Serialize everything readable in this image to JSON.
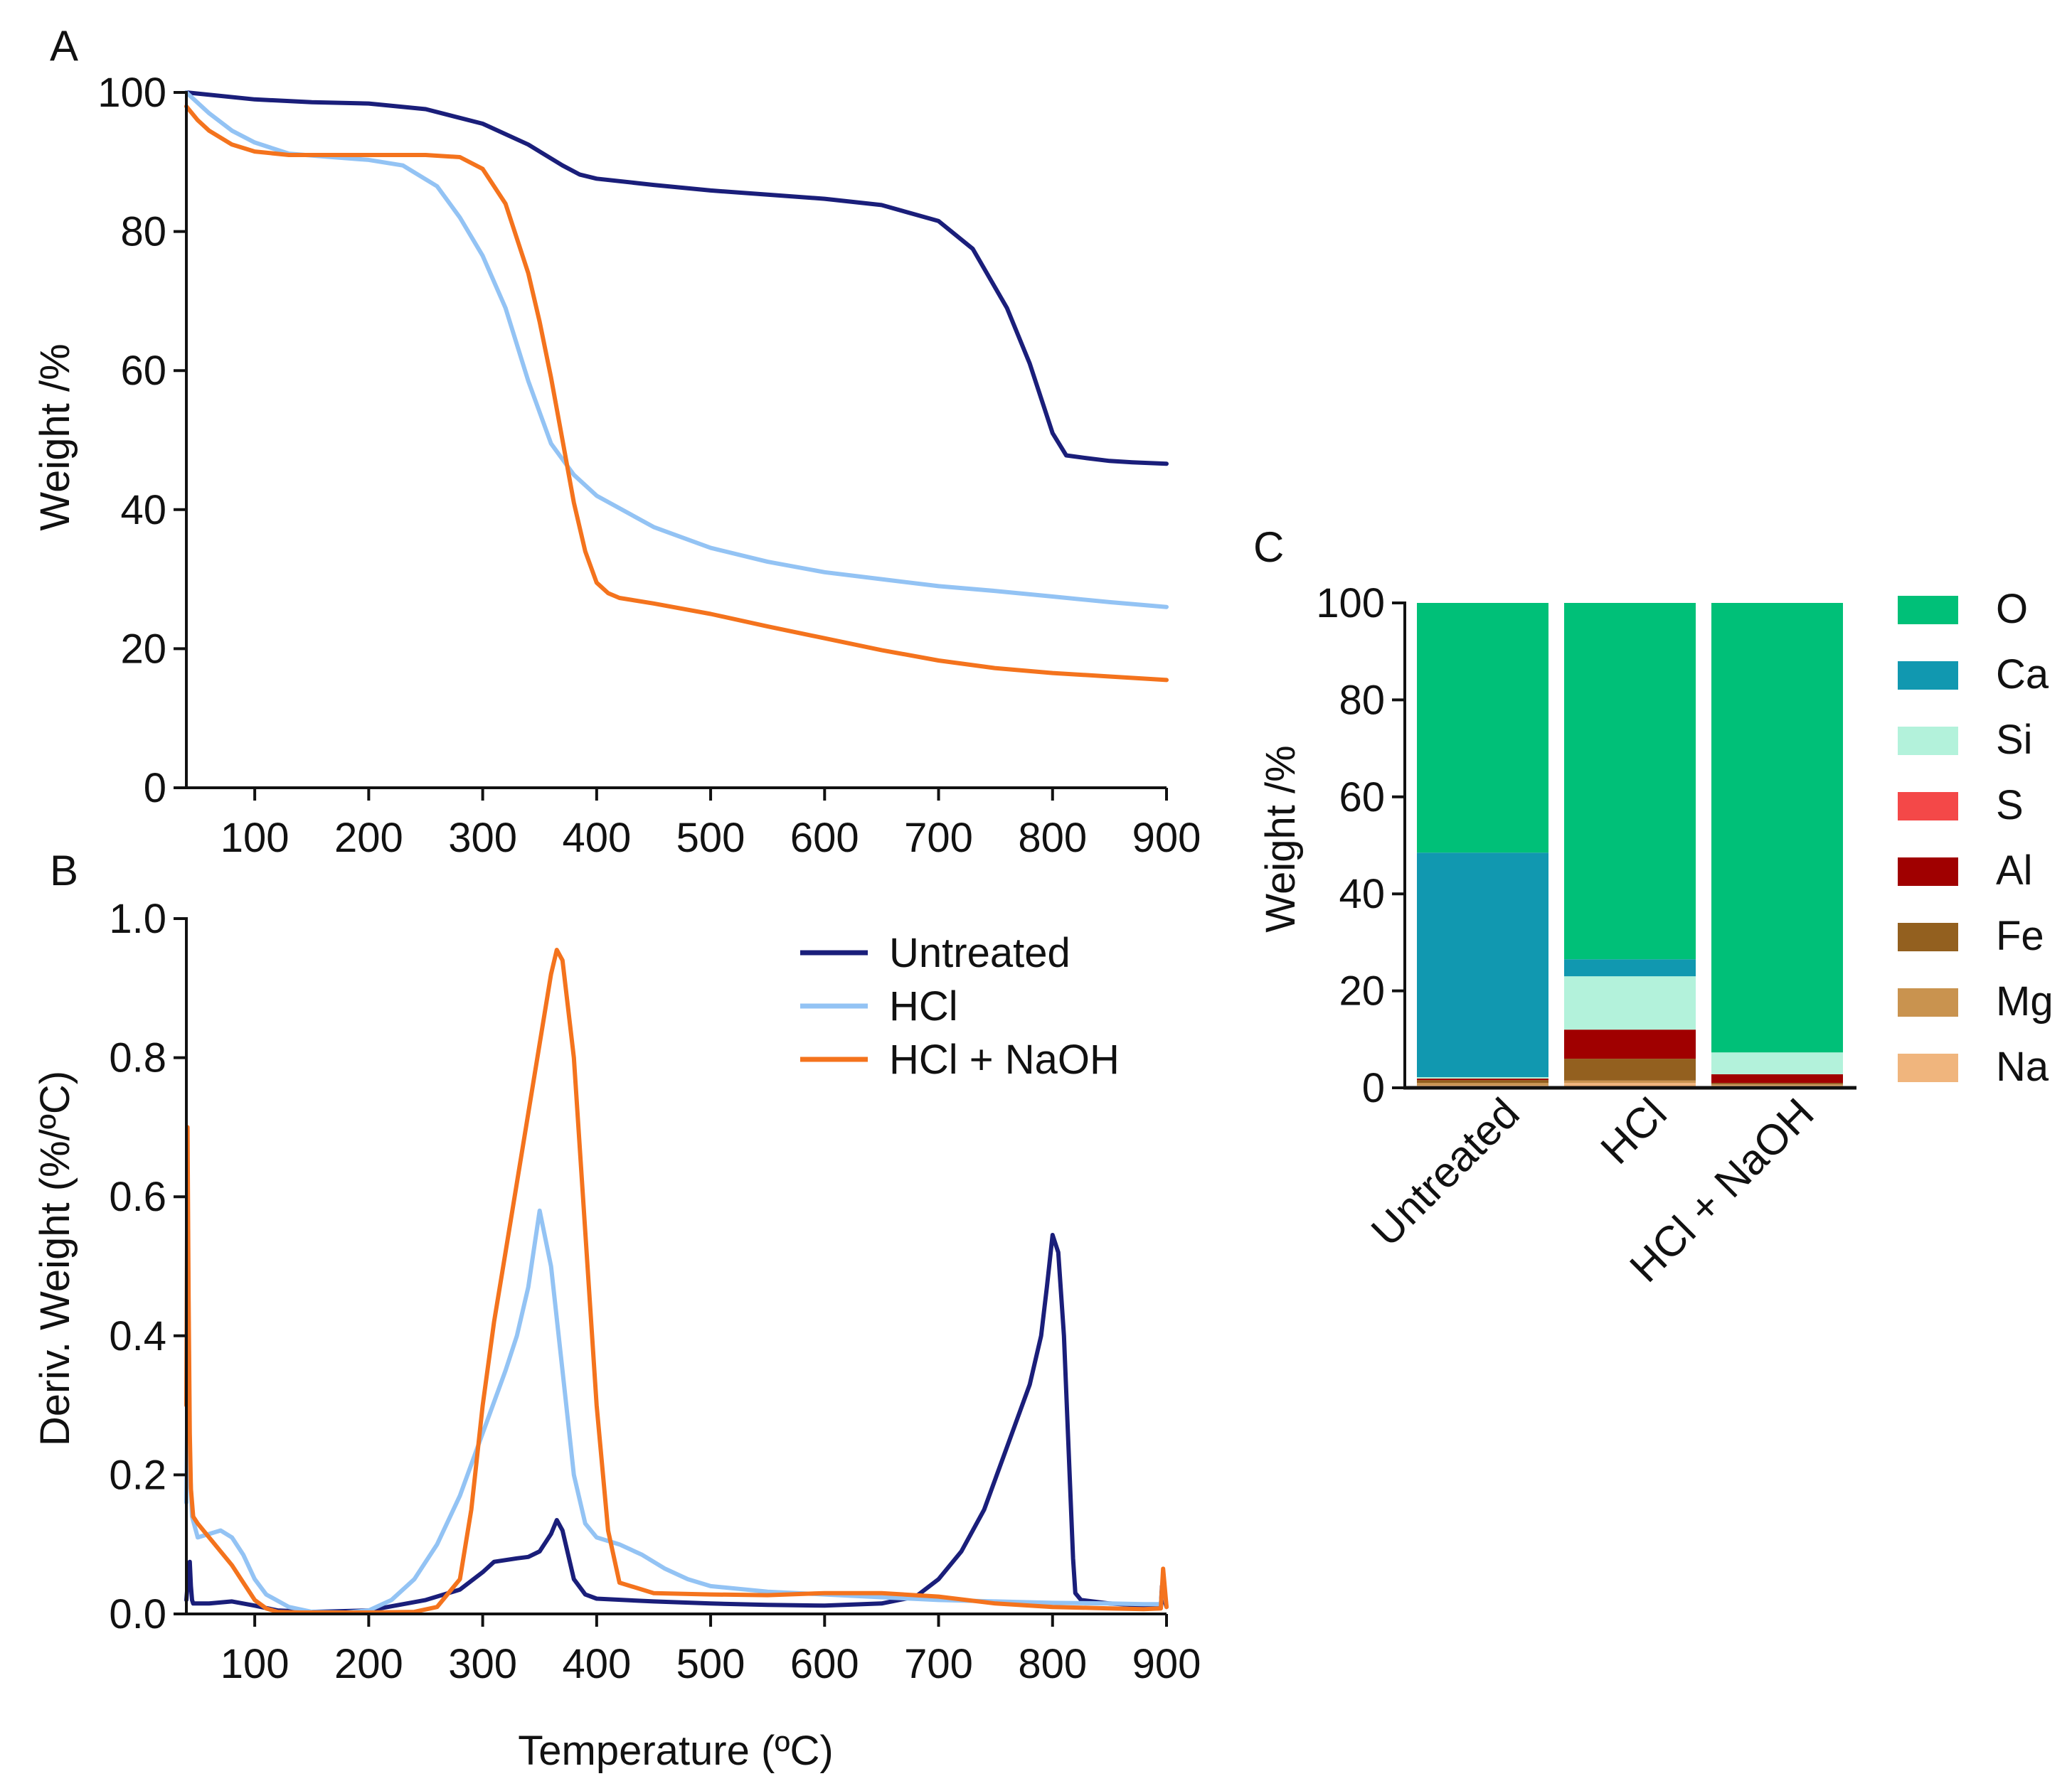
{
  "figure": {
    "panels": [
      "A",
      "B",
      "C"
    ],
    "shared_xlabel": "Temperature (ºC)"
  },
  "chart_data": [
    {
      "id": "A",
      "type": "line",
      "title": "",
      "xlabel": "",
      "ylabel": "Weight /%",
      "xlim": [
        40,
        900
      ],
      "ylim": [
        0,
        100
      ],
      "xticks": [
        100,
        200,
        300,
        400,
        500,
        600,
        700,
        800,
        900
      ],
      "yticks": [
        0,
        20,
        40,
        60,
        80,
        100
      ],
      "series": [
        {
          "name": "Untreated",
          "color": "#1a1e7a",
          "x": [
            40,
            100,
            150,
            200,
            250,
            300,
            340,
            370,
            385,
            400,
            450,
            500,
            550,
            600,
            650,
            700,
            730,
            760,
            780,
            800,
            812,
            830,
            850,
            870,
            900
          ],
          "y": [
            100,
            99,
            98.6,
            98.4,
            97.6,
            95.5,
            92.5,
            89.5,
            88.2,
            87.6,
            86.7,
            85.9,
            85.3,
            84.7,
            83.8,
            81.5,
            77.5,
            69,
            61,
            51,
            47.8,
            47.4,
            47,
            46.8,
            46.6
          ]
        },
        {
          "name": "HCl",
          "color": "#93c3f4",
          "x": [
            40,
            60,
            80,
            100,
            130,
            160,
            200,
            230,
            260,
            280,
            300,
            320,
            340,
            360,
            380,
            400,
            450,
            500,
            550,
            600,
            650,
            700,
            750,
            800,
            850,
            900
          ],
          "y": [
            100,
            97,
            94.5,
            92.8,
            91.2,
            90.8,
            90.3,
            89.5,
            86.5,
            82,
            76.5,
            69,
            58.5,
            49.5,
            45,
            42,
            37.5,
            34.5,
            32.5,
            31,
            30,
            29,
            28.3,
            27.5,
            26.7,
            26
          ]
        },
        {
          "name": "HCl + NaOH",
          "color": "#f4731d",
          "x": [
            40,
            50,
            60,
            80,
            100,
            130,
            160,
            200,
            250,
            280,
            300,
            320,
            340,
            350,
            360,
            370,
            380,
            390,
            400,
            410,
            420,
            450,
            500,
            550,
            600,
            650,
            700,
            750,
            800,
            850,
            900
          ],
          "y": [
            98,
            96,
            94.5,
            92.5,
            91.5,
            91,
            91,
            91,
            91,
            90.7,
            89,
            84,
            74,
            67,
            59,
            50,
            41,
            34,
            29.5,
            28,
            27.3,
            26.5,
            25,
            23.2,
            21.5,
            19.8,
            18.3,
            17.2,
            16.5,
            16,
            15.5
          ]
        }
      ]
    },
    {
      "id": "B",
      "type": "line",
      "title": "",
      "xlabel": "Temperature (ºC)",
      "ylabel": "Deriv. Weight (%/ºC)",
      "xlim": [
        40,
        900
      ],
      "ylim": [
        0,
        1.0
      ],
      "xticks": [
        100,
        200,
        300,
        400,
        500,
        600,
        700,
        800,
        900
      ],
      "yticks": [
        0.0,
        0.2,
        0.4,
        0.6,
        0.8,
        1.0
      ],
      "legend": [
        "Untreated",
        "HCl",
        "HCl + NaOH"
      ],
      "legend_position": "top-right",
      "series": [
        {
          "name": "Untreated",
          "color": "#1a1e7a",
          "x": [
            40,
            42,
            43,
            44,
            45,
            46,
            50,
            60,
            80,
            100,
            120,
            150,
            200,
            250,
            280,
            300,
            310,
            330,
            340,
            350,
            360,
            365,
            370,
            380,
            390,
            400,
            450,
            500,
            550,
            600,
            650,
            680,
            700,
            720,
            740,
            760,
            780,
            790,
            795,
            800,
            805,
            810,
            815,
            818,
            820,
            825,
            850,
            880,
            895,
            896,
            898,
            900
          ],
          "y": [
            0.02,
            0.06,
            0.075,
            0.04,
            0.02,
            0.015,
            0.015,
            0.015,
            0.018,
            0.012,
            0.005,
            0.003,
            0.005,
            0.02,
            0.035,
            0.06,
            0.075,
            0.08,
            0.082,
            0.09,
            0.115,
            0.135,
            0.12,
            0.05,
            0.028,
            0.022,
            0.018,
            0.015,
            0.013,
            0.012,
            0.015,
            0.025,
            0.05,
            0.09,
            0.15,
            0.24,
            0.33,
            0.4,
            0.47,
            0.545,
            0.52,
            0.4,
            0.2,
            0.08,
            0.03,
            0.02,
            0.015,
            0.012,
            0.01,
            0.04,
            0.02,
            0.01
          ]
        },
        {
          "name": "HCl",
          "color": "#93c3f4",
          "x": [
            40,
            41,
            42,
            43,
            45,
            50,
            60,
            70,
            80,
            90,
            100,
            110,
            130,
            150,
            180,
            200,
            220,
            240,
            260,
            280,
            300,
            320,
            330,
            340,
            350,
            360,
            370,
            380,
            390,
            400,
            420,
            440,
            460,
            480,
            500,
            550,
            600,
            650,
            700,
            750,
            800,
            850,
            880,
            895,
            897,
            900
          ],
          "y": [
            0.16,
            0.32,
            0.42,
            0.22,
            0.14,
            0.11,
            0.115,
            0.12,
            0.11,
            0.085,
            0.05,
            0.028,
            0.01,
            0.003,
            0.002,
            0.005,
            0.02,
            0.05,
            0.1,
            0.17,
            0.26,
            0.35,
            0.4,
            0.47,
            0.58,
            0.5,
            0.35,
            0.2,
            0.13,
            0.11,
            0.1,
            0.085,
            0.065,
            0.05,
            0.04,
            0.032,
            0.028,
            0.024,
            0.02,
            0.018,
            0.016,
            0.015,
            0.014,
            0.014,
            0.05,
            0.01
          ]
        },
        {
          "name": "HCl + NaOH",
          "color": "#f4731d",
          "x": [
            40,
            41,
            42,
            43,
            44,
            46,
            50,
            60,
            70,
            80,
            90,
            100,
            110,
            120,
            140,
            160,
            200,
            240,
            260,
            280,
            290,
            300,
            310,
            320,
            330,
            340,
            350,
            360,
            365,
            370,
            380,
            390,
            400,
            410,
            420,
            450,
            500,
            550,
            600,
            650,
            700,
            750,
            800,
            850,
            880,
            895,
            897,
            900
          ],
          "y": [
            0.3,
            0.7,
            0.45,
            0.26,
            0.18,
            0.14,
            0.13,
            0.11,
            0.09,
            0.07,
            0.045,
            0.02,
            0.008,
            0.003,
            0.002,
            0.002,
            0.002,
            0.003,
            0.01,
            0.05,
            0.15,
            0.3,
            0.42,
            0.52,
            0.62,
            0.72,
            0.82,
            0.92,
            0.955,
            0.94,
            0.8,
            0.55,
            0.3,
            0.12,
            0.045,
            0.03,
            0.028,
            0.027,
            0.03,
            0.03,
            0.025,
            0.015,
            0.01,
            0.008,
            0.007,
            0.008,
            0.065,
            0.01
          ]
        }
      ]
    },
    {
      "id": "C",
      "type": "bar",
      "stacked": true,
      "title": "",
      "xlabel": "",
      "ylabel": "Weight /%",
      "ylim": [
        0,
        100
      ],
      "yticks": [
        0,
        20,
        40,
        60,
        80,
        100
      ],
      "categories": [
        "Untreated",
        "HCl",
        "HCl + NaOH"
      ],
      "legend_position": "right",
      "series": [
        {
          "name": "Na",
          "color": "#f0b57d",
          "values": [
            0.5,
            1.0,
            0.5
          ]
        },
        {
          "name": "Mg",
          "color": "#c9934f",
          "values": [
            0.5,
            0.5,
            0.2
          ]
        },
        {
          "name": "Fe",
          "color": "#93601f",
          "values": [
            0.6,
            4.5,
            0.3
          ]
        },
        {
          "name": "Al",
          "color": "#a00000",
          "values": [
            0.3,
            6.0,
            1.8
          ]
        },
        {
          "name": "S",
          "color": "#f44848",
          "values": [
            0.0,
            0.0,
            0.0
          ]
        },
        {
          "name": "Si",
          "color": "#b3f2db",
          "values": [
            0.3,
            11.0,
            4.5
          ]
        },
        {
          "name": "Ca",
          "color": "#1198b0",
          "values": [
            46.3,
            3.5,
            0.0
          ]
        },
        {
          "name": "O",
          "color": "#00c078",
          "values": [
            51.5,
            73.5,
            92.7
          ]
        }
      ]
    }
  ]
}
